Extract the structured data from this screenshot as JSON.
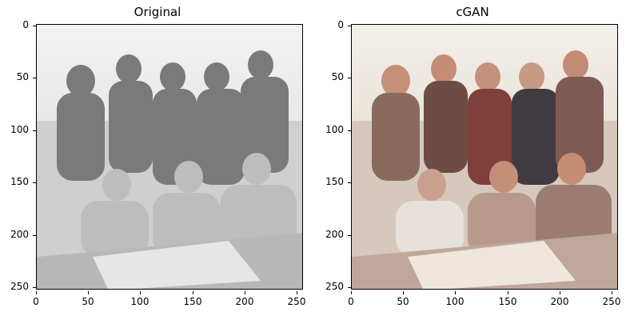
{
  "panels": [
    {
      "title": "Original",
      "variant": "grayscale"
    },
    {
      "title": "cGAN",
      "variant": "color"
    }
  ],
  "axes": {
    "x_ticks": [
      "0",
      "50",
      "100",
      "150",
      "200",
      "250"
    ],
    "y_ticks": [
      "0",
      "50",
      "100",
      "150",
      "200",
      "250"
    ]
  },
  "colors": {
    "background": "#ffffff",
    "axis": "#000000"
  }
}
